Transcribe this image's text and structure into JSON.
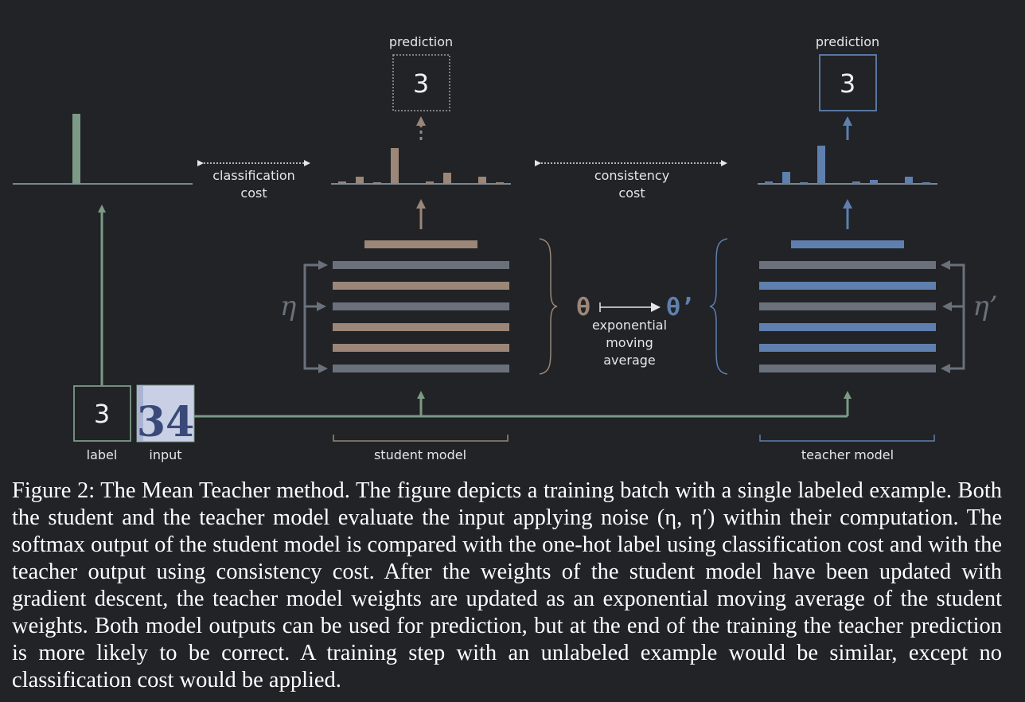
{
  "diagram": {
    "colors": {
      "label_green": "#7c9a86",
      "student_brown": "#9b8677",
      "teacher_blue": "#5f7fae",
      "neutral_gray": "#6a717b",
      "text": "#e6e6e6"
    },
    "label_box": {
      "digit": "3",
      "caption": "label"
    },
    "input_image": {
      "digits": "34",
      "caption": "input",
      "icon": "house-number-image-icon"
    },
    "student": {
      "prediction_title": "prediction",
      "prediction_digit": "3",
      "model_caption": "student model",
      "noise_symbol": "η"
    },
    "teacher": {
      "prediction_title": "prediction",
      "prediction_digit": "3",
      "model_caption": "teacher model",
      "noise_symbol": "η’"
    },
    "classification_cost": {
      "line1": "classification",
      "line2": "cost"
    },
    "consistency_cost": {
      "line1": "consistency",
      "line2": "cost"
    },
    "ema": {
      "from": "θ",
      "to": "θ’",
      "line1": "exponential",
      "line2": "moving",
      "line3": "average"
    }
  },
  "caption": {
    "label": "Figure 2:",
    "text": "The Mean Teacher method. The figure depicts a training batch with a single labeled example. Both the student and the teacher model evaluate the input applying noise (η, η′) within their computation. The softmax output of the student model is compared with the one-hot label using classification cost and with the teacher output using consistency cost. After the weights of the student model have been updated with gradient descent, the teacher model weights are updated as an exponential moving average of the student weights. Both model outputs can be used for prediction, but at the end of the training the teacher prediction is more likely to be correct. A training step with an unlabeled example would be similar, except no classification cost would be applied."
  }
}
